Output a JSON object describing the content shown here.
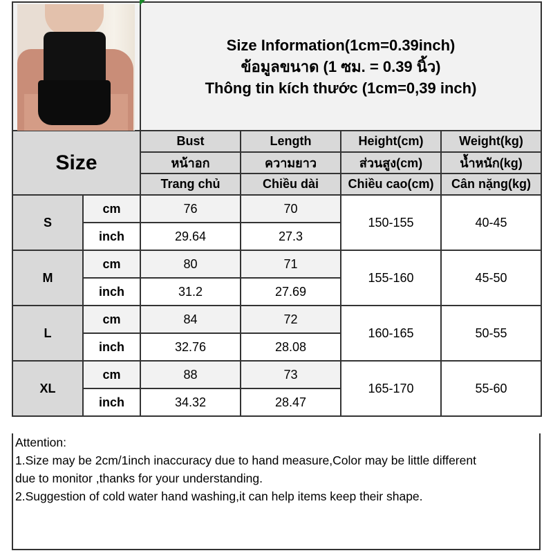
{
  "title_lines": [
    "Size Information(1cm=0.39inch)",
    "ข้อมูลขนาด (1 ซม. = 0.39 นิ้ว)",
    "Thông tin kích thước (1cm=0,39 inch)"
  ],
  "size_label": "Size",
  "headers": [
    [
      "Bust",
      "Length",
      "Height(cm)",
      "Weight(kg)"
    ],
    [
      "หน้าอก",
      "ความยาว",
      "ส่วนสูง(cm)",
      "น้ำหนัก(kg)"
    ],
    [
      "Trang chủ",
      "Chiều dài",
      "Chiều cao(cm)",
      "Cân nặng(kg)"
    ]
  ],
  "units": {
    "cm": "cm",
    "inch": "inch"
  },
  "rows": [
    {
      "size": "S",
      "bust_cm": "76",
      "length_cm": "70",
      "bust_inch": "29.64",
      "length_inch": "27.3",
      "height": "150-155",
      "weight": "40-45"
    },
    {
      "size": "M",
      "bust_cm": "80",
      "length_cm": "71",
      "bust_inch": "31.2",
      "length_inch": "27.69",
      "height": "155-160",
      "weight": "45-50"
    },
    {
      "size": "L",
      "bust_cm": "84",
      "length_cm": "72",
      "bust_inch": "32.76",
      "length_inch": "28.08",
      "height": "160-165",
      "weight": "50-55"
    },
    {
      "size": "XL",
      "bust_cm": "88",
      "length_cm": "73",
      "bust_inch": "34.32",
      "length_inch": "28.47",
      "height": "165-170",
      "weight": "55-60"
    }
  ],
  "attention": [
    "Attention:",
    "1.Size may be 2cm/1inch inaccuracy due to hand measure,Color may be little different",
    "due to monitor ,thanks for your understanding.",
    "2.Suggestion of cold water hand washing,it can help items keep their shape."
  ],
  "colors": {
    "header_bg": "#d9d9d9",
    "cm_row_bg": "#f2f2f2",
    "inch_row_bg": "#ffffff",
    "border": "#333333"
  }
}
